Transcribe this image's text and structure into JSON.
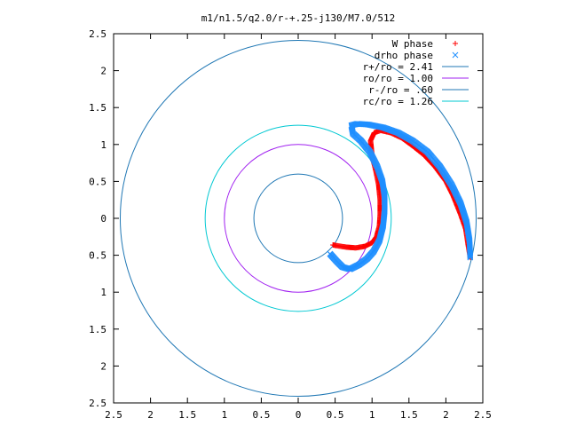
{
  "chart_data": {
    "type": "scatter",
    "title": "m1/n1.5/q2.0/r-+.25-j130/M7.0/512",
    "xlabel": "",
    "ylabel": "",
    "xlim": [
      -2.5,
      2.5
    ],
    "ylim": [
      -2.5,
      2.5
    ],
    "x_ticks": [
      -2.5,
      -2,
      -1.5,
      -1,
      -0.5,
      0,
      0.5,
      1,
      1.5,
      2,
      2.5
    ],
    "y_ticks": [
      -2.5,
      -2,
      -1.5,
      -1,
      -0.5,
      0,
      0.5,
      1,
      1.5,
      2,
      2.5
    ],
    "x_tick_labels": [
      "2.5",
      "2",
      "1.5",
      "1",
      "0.5",
      "0",
      "0.5",
      "1",
      "1.5",
      "2",
      "2.5"
    ],
    "y_tick_labels": [
      "2.5",
      "2",
      "1.5",
      "1",
      "0.5",
      "0",
      "0.5",
      "1",
      "1.5",
      "2",
      "2.5"
    ],
    "grid": false,
    "legend_position": "top-right",
    "circles": [
      {
        "label": "r+/ro = 2.41",
        "r": 2.41,
        "color": "#1f77b4"
      },
      {
        "label": "ro/ro = 1.00",
        "r": 1.0,
        "color": "#a020f0"
      },
      {
        "label": "r-/ro = .60",
        "r": 0.6,
        "color": "#1f77b4"
      },
      {
        "label": "rc/ro = 1.26",
        "r": 1.26,
        "color": "#00c8d2"
      }
    ],
    "series": [
      {
        "name": "W phase",
        "marker": "plus",
        "color": "#ff0000",
        "points": [
          [
            2.33,
            -0.53
          ],
          [
            2.3,
            -0.35
          ],
          [
            2.27,
            -0.15
          ],
          [
            2.2,
            0.05
          ],
          [
            2.1,
            0.3
          ],
          [
            2.0,
            0.5
          ],
          [
            1.85,
            0.7
          ],
          [
            1.7,
            0.86
          ],
          [
            1.55,
            0.98
          ],
          [
            1.4,
            1.09
          ],
          [
            1.25,
            1.16
          ],
          [
            1.12,
            1.19
          ],
          [
            1.03,
            1.16
          ],
          [
            0.98,
            1.05
          ],
          [
            1.0,
            0.85
          ],
          [
            1.05,
            0.65
          ],
          [
            1.09,
            0.45
          ],
          [
            1.11,
            0.25
          ],
          [
            1.11,
            0.05
          ],
          [
            1.1,
            -0.1
          ],
          [
            1.06,
            -0.25
          ],
          [
            1.0,
            -0.33
          ],
          [
            0.9,
            -0.38
          ],
          [
            0.78,
            -0.4
          ],
          [
            0.65,
            -0.39
          ],
          [
            0.52,
            -0.37
          ],
          [
            0.47,
            -0.36
          ]
        ]
      },
      {
        "name": "drho phase",
        "marker": "x",
        "color": "#1f8fff",
        "points": [
          [
            2.33,
            -0.53
          ],
          [
            2.32,
            -0.3
          ],
          [
            2.28,
            -0.05
          ],
          [
            2.2,
            0.2
          ],
          [
            2.08,
            0.45
          ],
          [
            1.92,
            0.7
          ],
          [
            1.75,
            0.9
          ],
          [
            1.55,
            1.05
          ],
          [
            1.35,
            1.16
          ],
          [
            1.15,
            1.23
          ],
          [
            0.95,
            1.27
          ],
          [
            0.8,
            1.28
          ],
          [
            0.72,
            1.26
          ],
          [
            0.74,
            1.15
          ],
          [
            0.85,
            1.05
          ],
          [
            0.97,
            0.9
          ],
          [
            1.07,
            0.7
          ],
          [
            1.14,
            0.5
          ],
          [
            1.17,
            0.3
          ],
          [
            1.17,
            0.1
          ],
          [
            1.15,
            -0.1
          ],
          [
            1.1,
            -0.3
          ],
          [
            1.02,
            -0.45
          ],
          [
            0.93,
            -0.55
          ],
          [
            0.82,
            -0.63
          ],
          [
            0.7,
            -0.69
          ],
          [
            0.6,
            -0.66
          ],
          [
            0.52,
            -0.58
          ],
          [
            0.43,
            -0.48
          ]
        ]
      }
    ]
  }
}
